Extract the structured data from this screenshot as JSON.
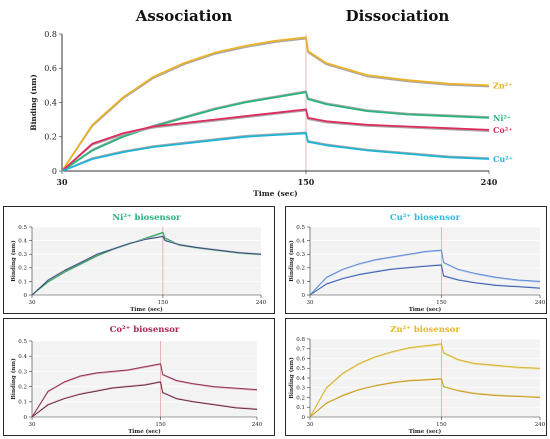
{
  "chart_data": [
    {
      "id": "main",
      "type": "line",
      "phase_labels": [
        "Association",
        "Dissociation"
      ],
      "xlabel": "Time (sec)",
      "ylabel": "Binding (nm)",
      "xlim": [
        30,
        240
      ],
      "ylim": [
        0,
        0.8
      ],
      "x_ticks": [
        30,
        150,
        240
      ],
      "y_ticks": [
        0,
        0.2,
        0.4,
        0.6,
        0.8
      ],
      "grid": false,
      "boundary_x": 150,
      "series": [
        {
          "name": "Zn²⁺",
          "color": "#ebb12a",
          "fit": "#a8a8a8",
          "x": [
            30,
            45,
            60,
            75,
            90,
            105,
            120,
            135,
            150,
            151,
            160,
            180,
            200,
            220,
            240
          ],
          "y": [
            0,
            0.27,
            0.43,
            0.55,
            0.63,
            0.69,
            0.73,
            0.76,
            0.78,
            0.7,
            0.63,
            0.56,
            0.53,
            0.51,
            0.5
          ]
        },
        {
          "name": "Ni²⁺",
          "color": "#2bb37d",
          "fit": "#a8a8a8",
          "x": [
            30,
            45,
            60,
            75,
            90,
            105,
            120,
            135,
            150,
            151,
            160,
            180,
            200,
            220,
            240
          ],
          "y": [
            0,
            0.12,
            0.2,
            0.26,
            0.31,
            0.36,
            0.4,
            0.43,
            0.46,
            0.42,
            0.39,
            0.35,
            0.33,
            0.32,
            0.31
          ]
        },
        {
          "name": "Co²⁺",
          "color": "#dc2d5c",
          "fit": "#a8a8a8",
          "x": [
            30,
            45,
            60,
            75,
            90,
            105,
            120,
            135,
            150,
            151,
            160,
            180,
            200,
            220,
            240
          ],
          "y": [
            0,
            0.16,
            0.22,
            0.26,
            0.28,
            0.3,
            0.32,
            0.34,
            0.36,
            0.31,
            0.29,
            0.27,
            0.26,
            0.25,
            0.24
          ]
        },
        {
          "name": "Cu²⁺",
          "color": "#1eb4d6",
          "fit": "#a8a8a8",
          "x": [
            30,
            45,
            60,
            75,
            90,
            105,
            120,
            135,
            150,
            151,
            160,
            180,
            200,
            220,
            240
          ],
          "y": [
            0,
            0.07,
            0.11,
            0.14,
            0.16,
            0.18,
            0.2,
            0.21,
            0.22,
            0.17,
            0.15,
            0.12,
            0.1,
            0.08,
            0.07
          ]
        }
      ]
    },
    {
      "id": "ni",
      "type": "line",
      "title": "Ni²⁺ biosensor",
      "title_color": "#2bb37d",
      "xlabel": "Time (sec)",
      "ylabel": "Binding (nm)",
      "xlim": [
        30,
        240
      ],
      "ylim": [
        0,
        0.5
      ],
      "x_ticks": [
        30,
        150,
        240
      ],
      "y_ticks": [
        0,
        0.1,
        0.2,
        0.3,
        0.4,
        0.5
      ],
      "grid": true,
      "boundary_x": 150,
      "series": [
        {
          "color": "#2c9c58",
          "fit": "#9ad2b2",
          "x": [
            30,
            45,
            60,
            75,
            90,
            105,
            120,
            135,
            150,
            152,
            165,
            180,
            200,
            220,
            240
          ],
          "y": [
            0,
            0.1,
            0.17,
            0.23,
            0.29,
            0.34,
            0.38,
            0.42,
            0.46,
            0.42,
            0.37,
            0.35,
            0.33,
            0.31,
            0.3
          ]
        },
        {
          "color": "#3a4a78",
          "fit": "#b6bfd6",
          "x": [
            30,
            45,
            60,
            75,
            90,
            105,
            120,
            135,
            150,
            152,
            165,
            180,
            200,
            220,
            240
          ],
          "y": [
            0,
            0.11,
            0.18,
            0.24,
            0.3,
            0.34,
            0.38,
            0.41,
            0.43,
            0.4,
            0.37,
            0.35,
            0.33,
            0.31,
            0.3
          ]
        }
      ]
    },
    {
      "id": "cu",
      "type": "line",
      "title": "Cu²⁺ biosensor",
      "title_color": "#36b9d8",
      "xlabel": "Time (sec)",
      "ylabel": "Binding (nm)",
      "xlim": [
        30,
        240
      ],
      "ylim": [
        0,
        0.5
      ],
      "x_ticks": [
        30,
        150,
        240
      ],
      "y_ticks": [
        0,
        0.1,
        0.2,
        0.3,
        0.4,
        0.5
      ],
      "grid": true,
      "boundary_x": 150,
      "series": [
        {
          "color": "#5f8fd6",
          "fit": "#b4c8ea",
          "x": [
            30,
            45,
            60,
            75,
            90,
            105,
            120,
            135,
            150,
            152,
            165,
            180,
            200,
            220,
            240
          ],
          "y": [
            0,
            0.13,
            0.19,
            0.23,
            0.26,
            0.28,
            0.3,
            0.32,
            0.33,
            0.24,
            0.19,
            0.16,
            0.13,
            0.11,
            0.1
          ]
        },
        {
          "color": "#3c63b0",
          "fit": "#aebbe0",
          "x": [
            30,
            45,
            60,
            75,
            90,
            105,
            120,
            135,
            150,
            152,
            165,
            180,
            200,
            220,
            240
          ],
          "y": [
            0,
            0.08,
            0.12,
            0.15,
            0.17,
            0.19,
            0.2,
            0.21,
            0.22,
            0.14,
            0.11,
            0.09,
            0.07,
            0.06,
            0.05
          ]
        }
      ]
    },
    {
      "id": "co",
      "type": "line",
      "title": "Co²⁺ biosensor",
      "title_color": "#b02550",
      "xlabel": "Time (sec)",
      "ylabel": "Binding (nm)",
      "xlim": [
        30,
        240
      ],
      "ylim": [
        0,
        0.5
      ],
      "x_ticks": [
        30,
        150,
        240
      ],
      "y_ticks": [
        0,
        0.1,
        0.2,
        0.3,
        0.4,
        0.5
      ],
      "grid": true,
      "boundary_x": 150,
      "series": [
        {
          "color": "#8f3454",
          "fit": "#e2a8bc",
          "x": [
            30,
            45,
            60,
            75,
            90,
            105,
            120,
            135,
            150,
            152,
            165,
            180,
            200,
            220,
            240
          ],
          "y": [
            0,
            0.17,
            0.23,
            0.27,
            0.29,
            0.3,
            0.31,
            0.33,
            0.35,
            0.28,
            0.24,
            0.22,
            0.2,
            0.19,
            0.18
          ]
        },
        {
          "color": "#6e2c48",
          "fit": "#d8a4b8",
          "x": [
            30,
            45,
            60,
            75,
            90,
            105,
            120,
            135,
            150,
            152,
            165,
            180,
            200,
            220,
            240
          ],
          "y": [
            0,
            0.08,
            0.12,
            0.15,
            0.17,
            0.19,
            0.2,
            0.21,
            0.23,
            0.16,
            0.12,
            0.1,
            0.08,
            0.06,
            0.05
          ]
        }
      ]
    },
    {
      "id": "zn",
      "type": "line",
      "title": "Zn²⁺ biosensor",
      "title_color": "#e0b92a",
      "xlabel": "Time (sec)",
      "ylabel": "Binding (nm)",
      "xlim": [
        30,
        240
      ],
      "ylim": [
        0,
        0.8
      ],
      "x_ticks": [
        30,
        150,
        240
      ],
      "y_ticks": [
        0,
        0.1,
        0.2,
        0.3,
        0.4,
        0.5,
        0.6,
        0.7,
        0.8
      ],
      "grid": true,
      "boundary_x": 150,
      "series": [
        {
          "color": "#d8b32c",
          "fit": "#ecdb98",
          "x": [
            30,
            45,
            60,
            75,
            90,
            105,
            120,
            135,
            150,
            152,
            165,
            180,
            200,
            220,
            240
          ],
          "y": [
            0,
            0.3,
            0.45,
            0.55,
            0.62,
            0.67,
            0.71,
            0.73,
            0.75,
            0.66,
            0.59,
            0.55,
            0.53,
            0.51,
            0.5
          ]
        },
        {
          "color": "#c99a1e",
          "fit": "#e8d490",
          "x": [
            30,
            45,
            60,
            75,
            90,
            105,
            120,
            135,
            150,
            152,
            165,
            180,
            200,
            220,
            240
          ],
          "y": [
            0,
            0.14,
            0.22,
            0.28,
            0.32,
            0.35,
            0.37,
            0.38,
            0.39,
            0.31,
            0.27,
            0.24,
            0.22,
            0.21,
            0.2
          ]
        }
      ]
    }
  ]
}
